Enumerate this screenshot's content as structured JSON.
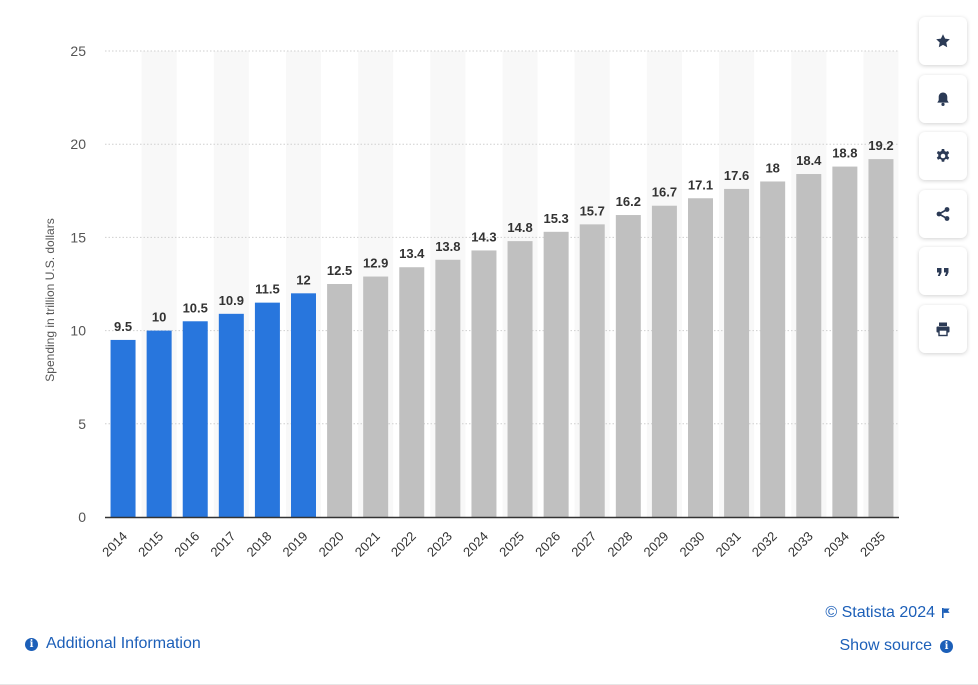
{
  "chart_data": {
    "type": "bar",
    "categories": [
      "2014",
      "2015",
      "2016",
      "2017",
      "2018",
      "2019",
      "2020",
      "2021",
      "2022",
      "2023",
      "2024",
      "2025",
      "2026",
      "2027",
      "2028",
      "2029",
      "2030",
      "2031",
      "2032",
      "2033",
      "2034",
      "2035"
    ],
    "values": [
      9.5,
      10,
      10.5,
      10.9,
      11.5,
      12,
      12.5,
      12.9,
      13.4,
      13.8,
      14.3,
      14.8,
      15.3,
      15.7,
      16.2,
      16.7,
      17.1,
      17.6,
      18,
      18.4,
      18.8,
      19.2
    ],
    "labels": [
      "9.5",
      "10",
      "10.5",
      "10.9",
      "11.5",
      "12",
      "12.5",
      "12.9",
      "13.4",
      "13.8",
      "14.3",
      "14.8",
      "15.3",
      "15.7",
      "16.2",
      "16.7",
      "17.1",
      "17.6",
      "18",
      "18.4",
      "18.8",
      "19.2"
    ],
    "ylabel": "Spending in trillion U.S. dollars",
    "xlabel": "",
    "ylim": [
      0,
      25
    ],
    "yticks": [
      0,
      5,
      10,
      15,
      20,
      25
    ],
    "actual_count": 6,
    "colors": {
      "actual": "#2876dd",
      "forecast": "#c0c0c0",
      "band": "#f8f8f8",
      "grid": "#cfcfcf",
      "axis": "#333333"
    }
  },
  "sidebar": {
    "buttons": [
      {
        "icon": "star-icon",
        "name": "favorite-button"
      },
      {
        "icon": "bell-icon",
        "name": "notification-button"
      },
      {
        "icon": "gear-icon",
        "name": "settings-button"
      },
      {
        "icon": "share-icon",
        "name": "share-button"
      },
      {
        "icon": "quote-icon",
        "name": "cite-button"
      },
      {
        "icon": "print-icon",
        "name": "print-button"
      }
    ]
  },
  "footer": {
    "copyright": "© Statista 2024",
    "show_source": "Show source",
    "additional_info": "Additional Information"
  }
}
